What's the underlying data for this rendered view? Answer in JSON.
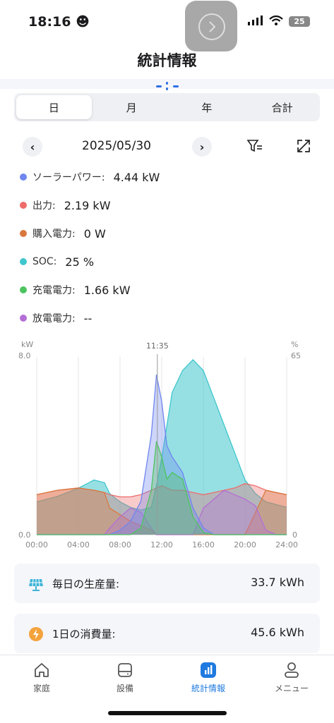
{
  "status_bar": {
    "time": "18:16",
    "time_emoji": "☻",
    "battery": "25"
  },
  "header": {
    "title": "統計情報"
  },
  "tabs": [
    {
      "label": "日",
      "active": true
    },
    {
      "label": "月",
      "active": false
    },
    {
      "label": "年",
      "active": false
    },
    {
      "label": "合計",
      "active": false
    }
  ],
  "date_nav": {
    "date": "2025/05/30",
    "prev": "‹",
    "next": "›"
  },
  "stats": [
    {
      "label": "ソーラーパワー:",
      "value": "4.44 kW",
      "color": "#6f86ee"
    },
    {
      "label": "出力:",
      "value": "2.19 kW",
      "color": "#ef6b6b"
    },
    {
      "label": "購入電力:",
      "value": "0 W",
      "color": "#d9783e"
    },
    {
      "label": "SOC:",
      "value": "25 %",
      "color": "#3fc6cc"
    },
    {
      "label": "充電電力:",
      "value": "1.66 kW",
      "color": "#4cc45e"
    },
    {
      "label": "放電電力:",
      "value": "--",
      "color": "#b46fd6"
    }
  ],
  "chart_data": {
    "type": "area",
    "left_unit": "kW",
    "right_unit": "%",
    "left_max": "8.0",
    "left_min": "0.0",
    "right_max": "65",
    "right_min": "0",
    "cursor_label": "11:35",
    "x_ticks": [
      "00:00",
      "04:00",
      "08:00",
      "12:00",
      "16:00",
      "20:00",
      "24:00"
    ],
    "ylim_left": [
      0,
      8
    ],
    "ylim_right": [
      0,
      65
    ],
    "x": [
      0,
      2,
      4,
      5.5,
      6.5,
      7,
      8,
      9,
      10,
      11,
      11.5,
      12,
      12.5,
      13,
      14,
      15,
      16,
      17,
      18,
      19,
      20,
      21,
      22,
      23,
      24
    ],
    "series": [
      {
        "name": "ソーラーパワー",
        "color": "#6f86ee",
        "values": [
          0,
          0,
          0,
          0,
          0,
          0,
          0.2,
          0.6,
          1.5,
          4.5,
          7.2,
          6.0,
          4.0,
          3.5,
          2.8,
          1.2,
          0.3,
          0,
          0,
          0,
          0,
          0,
          0,
          0,
          0
        ]
      },
      {
        "name": "出力",
        "color": "#ef6b6b",
        "values": [
          1.8,
          2.0,
          2.1,
          2.0,
          1.9,
          1.8,
          1.7,
          1.7,
          1.8,
          2.0,
          2.1,
          2.2,
          2.1,
          2.0,
          2.0,
          1.9,
          1.8,
          1.9,
          2.0,
          2.1,
          2.3,
          2.2,
          2.0,
          1.9,
          1.8
        ]
      },
      {
        "name": "購入電力",
        "color": "#d9783e",
        "values": [
          1.8,
          2.0,
          2.1,
          2.0,
          1.9,
          1.2,
          0.9,
          0.6,
          0.4,
          0.2,
          0,
          0,
          0,
          0,
          0,
          0,
          0,
          0,
          0,
          0,
          0,
          1.0,
          2.0,
          1.9,
          1.8
        ]
      },
      {
        "name": "SOC",
        "color": "#3fc6cc",
        "axis": "right",
        "values": [
          12,
          14,
          17,
          20,
          19,
          15,
          12,
          10,
          9,
          10,
          18,
          28,
          40,
          52,
          60,
          64,
          60,
          50,
          40,
          30,
          20,
          15,
          12,
          11,
          10
        ]
      },
      {
        "name": "充電電力",
        "color": "#4cc45e",
        "values": [
          0,
          0,
          0,
          0,
          0,
          0,
          0,
          0,
          0.3,
          2.0,
          4.2,
          3.5,
          2.5,
          2.8,
          2.5,
          0.8,
          0.1,
          0,
          0,
          0,
          0,
          0,
          0,
          0,
          0
        ]
      },
      {
        "name": "放電電力",
        "color": "#b46fd6",
        "values": [
          0,
          0,
          0,
          0,
          0,
          0.3,
          0.8,
          1.2,
          1.0,
          0.3,
          0,
          0,
          0,
          0,
          0,
          0,
          1.2,
          1.6,
          2.0,
          1.8,
          1.6,
          1.3,
          0.2,
          0,
          0
        ]
      }
    ]
  },
  "summary_cards": [
    {
      "label": "毎日の生産量:",
      "value": "33.7 kWh",
      "icon": "solar-panel-icon"
    },
    {
      "label": "1日の消費量:",
      "value": "45.6 kWh",
      "icon": "lightning-icon"
    }
  ],
  "bottom_nav": [
    {
      "label": "家庭",
      "icon": "home-icon",
      "active": false
    },
    {
      "label": "設備",
      "icon": "device-icon",
      "active": false
    },
    {
      "label": "統計情報",
      "icon": "stats-icon",
      "active": true
    },
    {
      "label": "メニュー",
      "icon": "user-icon",
      "active": false
    }
  ]
}
